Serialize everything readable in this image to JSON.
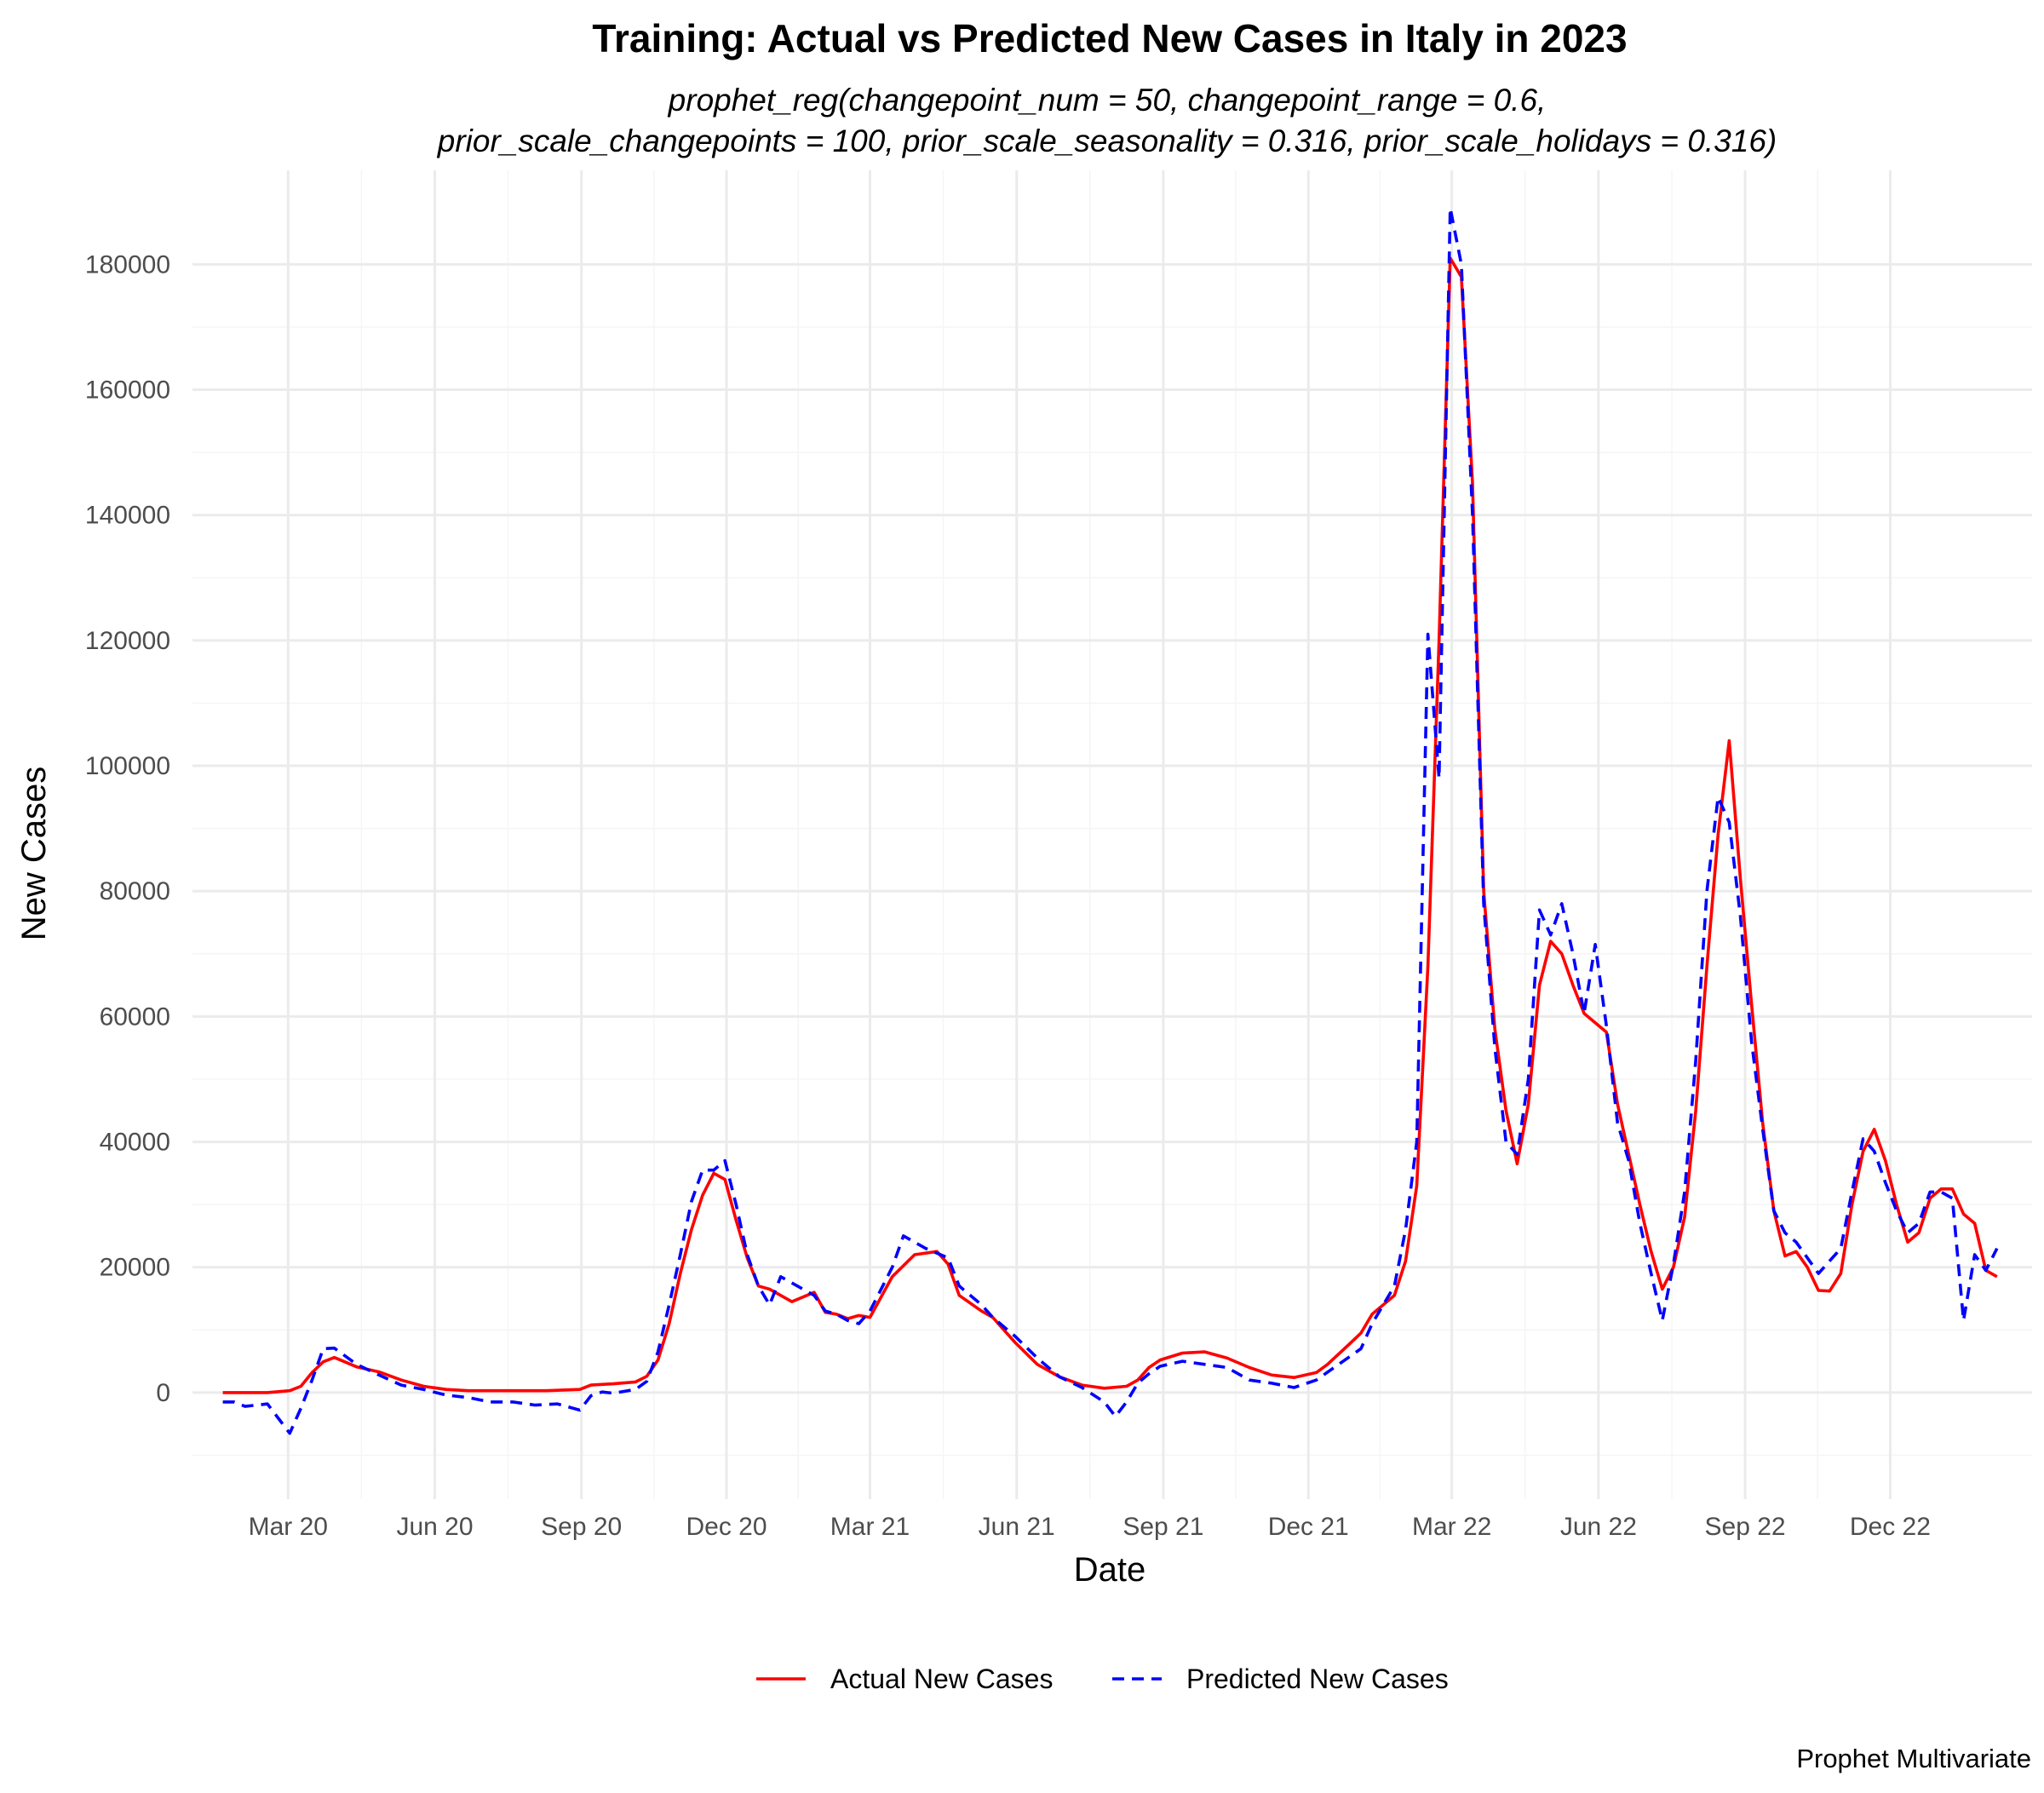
{
  "chart_data": {
    "type": "line",
    "title": "Training: Actual vs Predicted New Cases in Italy in 2023",
    "subtitle_lines": [
      "prophet_reg(changepoint_num = 50, changepoint_range = 0.6,",
      "prior_scale_changepoints = 100, prior_scale_seasonality = 0.316, prior_scale_holidays = 0.316)"
    ],
    "xlabel": "Date",
    "ylabel": "New Cases",
    "caption": "Prophet Multivariate",
    "xlim": [
      "2020-01-01",
      "2023-02-28"
    ],
    "ylim": [
      -17000,
      195000
    ],
    "x_ticks": [
      {
        "date": "2020-03-01",
        "label": "Mar 20"
      },
      {
        "date": "2020-06-01",
        "label": "Jun 20"
      },
      {
        "date": "2020-09-01",
        "label": "Sep 20"
      },
      {
        "date": "2020-12-01",
        "label": "Dec 20"
      },
      {
        "date": "2021-03-01",
        "label": "Mar 21"
      },
      {
        "date": "2021-06-01",
        "label": "Jun 21"
      },
      {
        "date": "2021-09-01",
        "label": "Sep 21"
      },
      {
        "date": "2021-12-01",
        "label": "Dec 21"
      },
      {
        "date": "2022-03-01",
        "label": "Mar 22"
      },
      {
        "date": "2022-06-01",
        "label": "Jun 22"
      },
      {
        "date": "2022-09-01",
        "label": "Sep 22"
      },
      {
        "date": "2022-12-01",
        "label": "Dec 22"
      }
    ],
    "y_ticks": [
      0,
      20000,
      40000,
      60000,
      80000,
      100000,
      120000,
      140000,
      160000,
      180000
    ],
    "grid": true,
    "legend": {
      "position": "bottom"
    },
    "series": [
      {
        "name": "Actual New Cases",
        "color": "#ff0000",
        "dash": "solid",
        "points": [
          [
            "2020-01-20",
            0
          ],
          [
            "2020-02-03",
            0
          ],
          [
            "2020-02-17",
            0
          ],
          [
            "2020-03-02",
            300
          ],
          [
            "2020-03-09",
            1000
          ],
          [
            "2020-03-16",
            3200
          ],
          [
            "2020-03-23",
            4900
          ],
          [
            "2020-03-30",
            5600
          ],
          [
            "2020-04-13",
            4100
          ],
          [
            "2020-04-27",
            3300
          ],
          [
            "2020-05-11",
            2000
          ],
          [
            "2020-05-25",
            1000
          ],
          [
            "2020-06-08",
            500
          ],
          [
            "2020-06-22",
            300
          ],
          [
            "2020-07-13",
            300
          ],
          [
            "2020-08-10",
            300
          ],
          [
            "2020-08-31",
            500
          ],
          [
            "2020-09-07",
            1200
          ],
          [
            "2020-09-21",
            1400
          ],
          [
            "2020-10-05",
            1700
          ],
          [
            "2020-10-12",
            2600
          ],
          [
            "2020-10-19",
            5200
          ],
          [
            "2020-10-26",
            11000
          ],
          [
            "2020-11-02",
            19000
          ],
          [
            "2020-11-09",
            26000
          ],
          [
            "2020-11-16",
            31500
          ],
          [
            "2020-11-23",
            35000
          ],
          [
            "2020-11-30",
            34000
          ],
          [
            "2020-12-07",
            27500
          ],
          [
            "2020-12-14",
            21500
          ],
          [
            "2020-12-21",
            17000
          ],
          [
            "2020-12-28",
            16500
          ],
          [
            "2021-01-04",
            15500
          ],
          [
            "2021-01-11",
            14500
          ],
          [
            "2021-01-25",
            16000
          ],
          [
            "2021-02-01",
            12800
          ],
          [
            "2021-02-08",
            12500
          ],
          [
            "2021-02-15",
            11800
          ],
          [
            "2021-02-22",
            12300
          ],
          [
            "2021-03-01",
            12000
          ],
          [
            "2021-03-15",
            18500
          ],
          [
            "2021-03-29",
            22000
          ],
          [
            "2021-04-12",
            22500
          ],
          [
            "2021-04-19",
            20500
          ],
          [
            "2021-04-26",
            15500
          ],
          [
            "2021-05-10",
            13000
          ],
          [
            "2021-05-17",
            12000
          ],
          [
            "2021-05-31",
            8000
          ],
          [
            "2021-06-14",
            4500
          ],
          [
            "2021-06-28",
            2500
          ],
          [
            "2021-07-12",
            1200
          ],
          [
            "2021-07-26",
            700
          ],
          [
            "2021-08-09",
            1000
          ],
          [
            "2021-08-16",
            2000
          ],
          [
            "2021-08-23",
            4000
          ],
          [
            "2021-08-30",
            5200
          ],
          [
            "2021-09-13",
            6300
          ],
          [
            "2021-09-27",
            6500
          ],
          [
            "2021-10-11",
            5500
          ],
          [
            "2021-10-25",
            4000
          ],
          [
            "2021-11-08",
            2800
          ],
          [
            "2021-11-22",
            2400
          ],
          [
            "2021-12-06",
            3200
          ],
          [
            "2021-12-13",
            4500
          ],
          [
            "2021-12-27",
            7800
          ],
          [
            "2022-01-03",
            9500
          ],
          [
            "2022-01-10",
            12500
          ],
          [
            "2022-01-24",
            15500
          ],
          [
            "2022-01-31",
            21000
          ],
          [
            "2022-02-07",
            33000
          ],
          [
            "2022-02-14",
            68000
          ],
          [
            "2022-02-21",
            120000
          ],
          [
            "2022-02-28",
            181000
          ],
          [
            "2022-03-07",
            178000
          ],
          [
            "2022-03-14",
            145000
          ],
          [
            "2022-03-21",
            80000
          ],
          [
            "2022-03-28",
            58000
          ],
          [
            "2022-04-04",
            45000
          ],
          [
            "2022-04-11",
            36500
          ],
          [
            "2022-04-18",
            46000
          ],
          [
            "2022-04-25",
            65000
          ],
          [
            "2022-05-02",
            72000
          ],
          [
            "2022-05-09",
            70000
          ],
          [
            "2022-05-16",
            65000
          ],
          [
            "2022-05-23",
            60500
          ],
          [
            "2022-06-06",
            57500
          ],
          [
            "2022-06-13",
            46000
          ],
          [
            "2022-06-20",
            38000
          ],
          [
            "2022-06-27",
            30000
          ],
          [
            "2022-07-04",
            22500
          ],
          [
            "2022-07-11",
            16500
          ],
          [
            "2022-07-18",
            20000
          ],
          [
            "2022-07-25",
            28000
          ],
          [
            "2022-08-01",
            45000
          ],
          [
            "2022-08-08",
            68000
          ],
          [
            "2022-08-15",
            89000
          ],
          [
            "2022-08-22",
            104000
          ],
          [
            "2022-08-29",
            82000
          ],
          [
            "2022-09-05",
            62000
          ],
          [
            "2022-09-12",
            43000
          ],
          [
            "2022-09-19",
            29000
          ],
          [
            "2022-09-26",
            21800
          ],
          [
            "2022-10-03",
            22500
          ],
          [
            "2022-10-10",
            20000
          ],
          [
            "2022-10-17",
            16300
          ],
          [
            "2022-10-24",
            16200
          ],
          [
            "2022-10-31",
            19000
          ],
          [
            "2022-11-07",
            30000
          ],
          [
            "2022-11-14",
            38500
          ],
          [
            "2022-11-21",
            42000
          ],
          [
            "2022-11-28",
            37000
          ],
          [
            "2022-12-05",
            30000
          ],
          [
            "2022-12-12",
            24000
          ],
          [
            "2022-12-19",
            25500
          ],
          [
            "2022-12-26",
            31000
          ],
          [
            "2023-01-02",
            32500
          ],
          [
            "2023-01-09",
            32500
          ],
          [
            "2023-01-16",
            28500
          ],
          [
            "2023-01-23",
            27000
          ],
          [
            "2023-01-30",
            19500
          ],
          [
            "2023-02-06",
            18500
          ]
        ]
      },
      {
        "name": "Predicted New Cases",
        "color": "#0000ff",
        "dash": "dashed",
        "points": [
          [
            "2020-01-20",
            -1500
          ],
          [
            "2020-01-27",
            -1500
          ],
          [
            "2020-02-03",
            -2200
          ],
          [
            "2020-02-17",
            -1800
          ],
          [
            "2020-03-02",
            -6500
          ],
          [
            "2020-03-09",
            -2500
          ],
          [
            "2020-03-16",
            2000
          ],
          [
            "2020-03-23",
            7000
          ],
          [
            "2020-03-30",
            7100
          ],
          [
            "2020-04-13",
            4500
          ],
          [
            "2020-04-27",
            2800
          ],
          [
            "2020-05-11",
            1200
          ],
          [
            "2020-05-25",
            500
          ],
          [
            "2020-06-08",
            -400
          ],
          [
            "2020-06-22",
            -800
          ],
          [
            "2020-07-06",
            -1500
          ],
          [
            "2020-07-20",
            -1500
          ],
          [
            "2020-08-03",
            -2000
          ],
          [
            "2020-08-17",
            -1800
          ],
          [
            "2020-08-31",
            -2800
          ],
          [
            "2020-09-07",
            -500
          ],
          [
            "2020-09-14",
            100
          ],
          [
            "2020-09-21",
            -100
          ],
          [
            "2020-10-05",
            500
          ],
          [
            "2020-10-12",
            1800
          ],
          [
            "2020-10-19",
            6500
          ],
          [
            "2020-10-26",
            14000
          ],
          [
            "2020-11-02",
            22000
          ],
          [
            "2020-11-09",
            30500
          ],
          [
            "2020-11-16",
            35500
          ],
          [
            "2020-11-23",
            35500
          ],
          [
            "2020-11-30",
            37000
          ],
          [
            "2020-12-07",
            30000
          ],
          [
            "2020-12-14",
            22000
          ],
          [
            "2020-12-21",
            17000
          ],
          [
            "2020-12-28",
            14000
          ],
          [
            "2021-01-04",
            18500
          ],
          [
            "2021-01-18",
            16500
          ],
          [
            "2021-01-25",
            15500
          ],
          [
            "2021-02-01",
            13000
          ],
          [
            "2021-02-08",
            12500
          ],
          [
            "2021-02-15",
            11500
          ],
          [
            "2021-02-22",
            11000
          ],
          [
            "2021-03-01",
            13000
          ],
          [
            "2021-03-15",
            20000
          ],
          [
            "2021-03-22",
            25000
          ],
          [
            "2021-04-05",
            23000
          ],
          [
            "2021-04-19",
            21500
          ],
          [
            "2021-04-26",
            17000
          ],
          [
            "2021-05-10",
            14000
          ],
          [
            "2021-05-17",
            12000
          ],
          [
            "2021-05-31",
            9000
          ],
          [
            "2021-06-14",
            5500
          ],
          [
            "2021-06-28",
            2500
          ],
          [
            "2021-07-12",
            800
          ],
          [
            "2021-07-26",
            -1500
          ],
          [
            "2021-08-02",
            -3800
          ],
          [
            "2021-08-09",
            -1500
          ],
          [
            "2021-08-16",
            1500
          ],
          [
            "2021-08-23",
            3000
          ],
          [
            "2021-08-30",
            4200
          ],
          [
            "2021-09-13",
            5000
          ],
          [
            "2021-09-27",
            4500
          ],
          [
            "2021-10-11",
            4000
          ],
          [
            "2021-10-25",
            2000
          ],
          [
            "2021-11-08",
            1500
          ],
          [
            "2021-11-22",
            800
          ],
          [
            "2021-12-06",
            2000
          ],
          [
            "2021-12-20",
            4500
          ],
          [
            "2022-01-03",
            7000
          ],
          [
            "2022-01-10",
            11000
          ],
          [
            "2022-01-24",
            17000
          ],
          [
            "2022-01-31",
            26000
          ],
          [
            "2022-02-07",
            40000
          ],
          [
            "2022-02-14",
            121000
          ],
          [
            "2022-02-21",
            98000
          ],
          [
            "2022-02-28",
            189000
          ],
          [
            "2022-03-07",
            180000
          ],
          [
            "2022-03-14",
            140000
          ],
          [
            "2022-03-21",
            78000
          ],
          [
            "2022-03-28",
            55000
          ],
          [
            "2022-04-04",
            40000
          ],
          [
            "2022-04-11",
            38000
          ],
          [
            "2022-04-18",
            50000
          ],
          [
            "2022-04-25",
            77000
          ],
          [
            "2022-05-02",
            73000
          ],
          [
            "2022-05-09",
            78000
          ],
          [
            "2022-05-16",
            70000
          ],
          [
            "2022-05-23",
            60500
          ],
          [
            "2022-05-30",
            71500
          ],
          [
            "2022-06-06",
            58500
          ],
          [
            "2022-06-13",
            43000
          ],
          [
            "2022-06-20",
            37000
          ],
          [
            "2022-06-27",
            27000
          ],
          [
            "2022-07-04",
            19000
          ],
          [
            "2022-07-11",
            11500
          ],
          [
            "2022-07-18",
            20500
          ],
          [
            "2022-07-25",
            32000
          ],
          [
            "2022-08-01",
            53000
          ],
          [
            "2022-08-08",
            80000
          ],
          [
            "2022-08-15",
            95000
          ],
          [
            "2022-08-22",
            91000
          ],
          [
            "2022-08-29",
            76000
          ],
          [
            "2022-09-05",
            56000
          ],
          [
            "2022-09-12",
            42000
          ],
          [
            "2022-09-19",
            29000
          ],
          [
            "2022-09-26",
            25500
          ],
          [
            "2022-10-03",
            24000
          ],
          [
            "2022-10-10",
            21500
          ],
          [
            "2022-10-17",
            19000
          ],
          [
            "2022-10-31",
            23000
          ],
          [
            "2022-11-07",
            32000
          ],
          [
            "2022-11-14",
            40500
          ],
          [
            "2022-11-21",
            38500
          ],
          [
            "2022-11-28",
            33500
          ],
          [
            "2022-12-05",
            29000
          ],
          [
            "2022-12-12",
            25500
          ],
          [
            "2022-12-19",
            27000
          ],
          [
            "2022-12-26",
            32000
          ],
          [
            "2023-01-02",
            32000
          ],
          [
            "2023-01-09",
            31000
          ],
          [
            "2023-01-16",
            11500
          ],
          [
            "2023-01-23",
            22000
          ],
          [
            "2023-01-30",
            19500
          ],
          [
            "2023-02-06",
            23000
          ]
        ]
      }
    ]
  }
}
